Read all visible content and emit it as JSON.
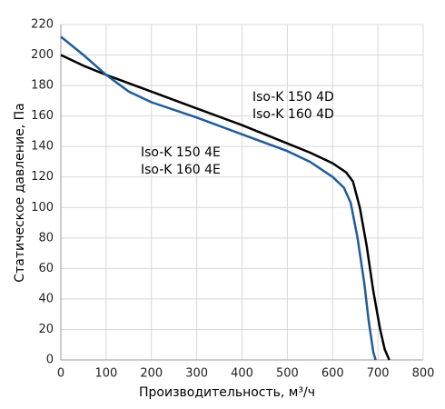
{
  "chart_data": {
    "type": "line",
    "x_label": "Производительность, м³/ч",
    "y_label": "Статическое давление, Па",
    "xlim": [
      0,
      800
    ],
    "xticks": [
      0,
      100,
      200,
      300,
      400,
      500,
      600,
      700,
      800
    ],
    "ylim": [
      0,
      220
    ],
    "yticks": [
      0,
      20,
      40,
      60,
      80,
      100,
      120,
      140,
      160,
      180,
      200,
      220
    ],
    "grid": true,
    "series": [
      {
        "labels": [
          "Iso-K 150 4D",
          "Iso-K 160 4D"
        ],
        "color": "#000000",
        "x": [
          0,
          50,
          100,
          200,
          300,
          400,
          500,
          550,
          600,
          630,
          645,
          660,
          675,
          690,
          705,
          715,
          725
        ],
        "values": [
          200,
          193,
          187,
          176,
          165,
          154,
          142,
          136,
          129,
          123,
          117,
          100,
          75,
          45,
          20,
          7,
          0
        ]
      },
      {
        "labels": [
          "Iso-K 150 4E",
          "Iso-K 160 4E"
        ],
        "color": "#1f5c9c",
        "x": [
          0,
          50,
          100,
          150,
          200,
          300,
          400,
          500,
          550,
          600,
          625,
          640,
          655,
          670,
          680,
          690,
          695
        ],
        "values": [
          212,
          200,
          187,
          176,
          169,
          159,
          148,
          137,
          130,
          120,
          113,
          103,
          80,
          50,
          25,
          5,
          0
        ]
      }
    ]
  }
}
